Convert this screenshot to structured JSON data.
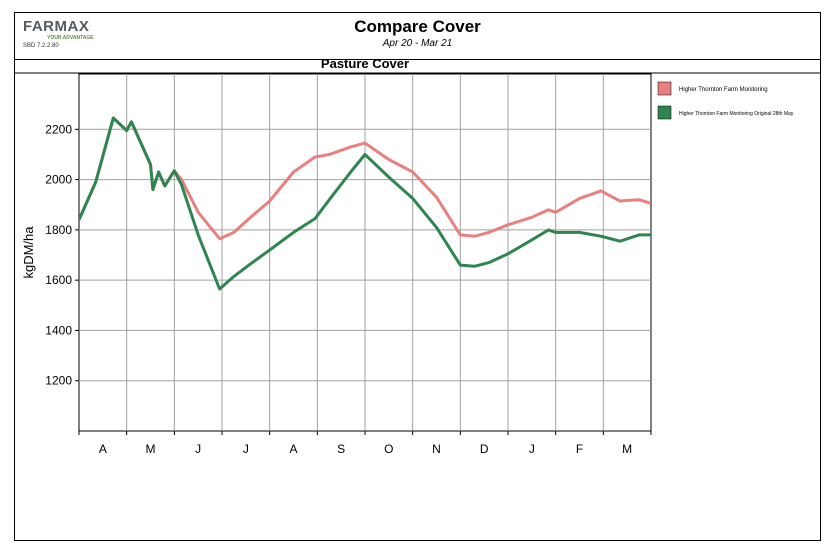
{
  "header": {
    "logo_main": "FARMAX",
    "logo_tagline": "YOUR ADVANTAGE",
    "version": "SBD 7.2.2.80",
    "title": "Compare Cover",
    "subtitle": "Apr 20 - Mar 21"
  },
  "colors": {
    "series1": "#e88080",
    "series2": "#2e8550",
    "grid": "#a0a0a0"
  },
  "chart_data": {
    "type": "line",
    "title": "Pasture Cover",
    "xlabel": "",
    "ylabel": "kgDM/ha",
    "xlim": [
      0,
      12
    ],
    "ylim": [
      1000,
      2420
    ],
    "y_ticks": [
      1200,
      1400,
      1600,
      1800,
      2000,
      2200
    ],
    "x_tick_labels": [
      "A",
      "M",
      "J",
      "J",
      "A",
      "S",
      "O",
      "N",
      "D",
      "J",
      "F",
      "M"
    ],
    "legend_position": "right",
    "grid": true,
    "series": [
      {
        "name": "Higher Thornton Farm Monitoring",
        "x": [
          0.0,
          0.35,
          0.72,
          1.0,
          1.1,
          1.5,
          1.55,
          1.67,
          1.8,
          2.0,
          2.15,
          2.5,
          2.95,
          3.25,
          3.6,
          4.0,
          4.5,
          4.95,
          5.25,
          5.7,
          6.0,
          6.5,
          7.0,
          7.5,
          8.0,
          8.3,
          8.6,
          9.0,
          9.5,
          9.85,
          10.0,
          10.5,
          10.95,
          11.35,
          11.75,
          12.0
        ],
        "values": [
          1840,
          1990,
          2245,
          2195,
          2230,
          2060,
          1960,
          2030,
          1975,
          2035,
          2000,
          1870,
          1765,
          1790,
          1850,
          1915,
          2030,
          2090,
          2100,
          2130,
          2145,
          2080,
          2030,
          1930,
          1780,
          1775,
          1790,
          1820,
          1850,
          1880,
          1870,
          1925,
          1955,
          1915,
          1920,
          1905
        ]
      },
      {
        "name": "Higher Thornton Farm Monitoring Original 28th May",
        "x": [
          0.0,
          0.35,
          0.72,
          1.0,
          1.1,
          1.5,
          1.55,
          1.67,
          1.8,
          2.0,
          2.15,
          2.5,
          2.95,
          3.25,
          3.6,
          4.0,
          4.5,
          4.95,
          5.25,
          5.7,
          6.0,
          6.5,
          7.0,
          7.5,
          8.0,
          8.3,
          8.6,
          9.0,
          9.5,
          9.85,
          10.0,
          10.5,
          10.95,
          11.35,
          11.75,
          12.0
        ],
        "values": [
          1840,
          1990,
          2245,
          2195,
          2230,
          2060,
          1960,
          2030,
          1975,
          2035,
          1980,
          1780,
          1565,
          1615,
          1665,
          1720,
          1790,
          1845,
          1920,
          2030,
          2100,
          2010,
          1925,
          1810,
          1660,
          1655,
          1670,
          1705,
          1760,
          1800,
          1790,
          1790,
          1775,
          1755,
          1780,
          1780
        ]
      }
    ]
  }
}
